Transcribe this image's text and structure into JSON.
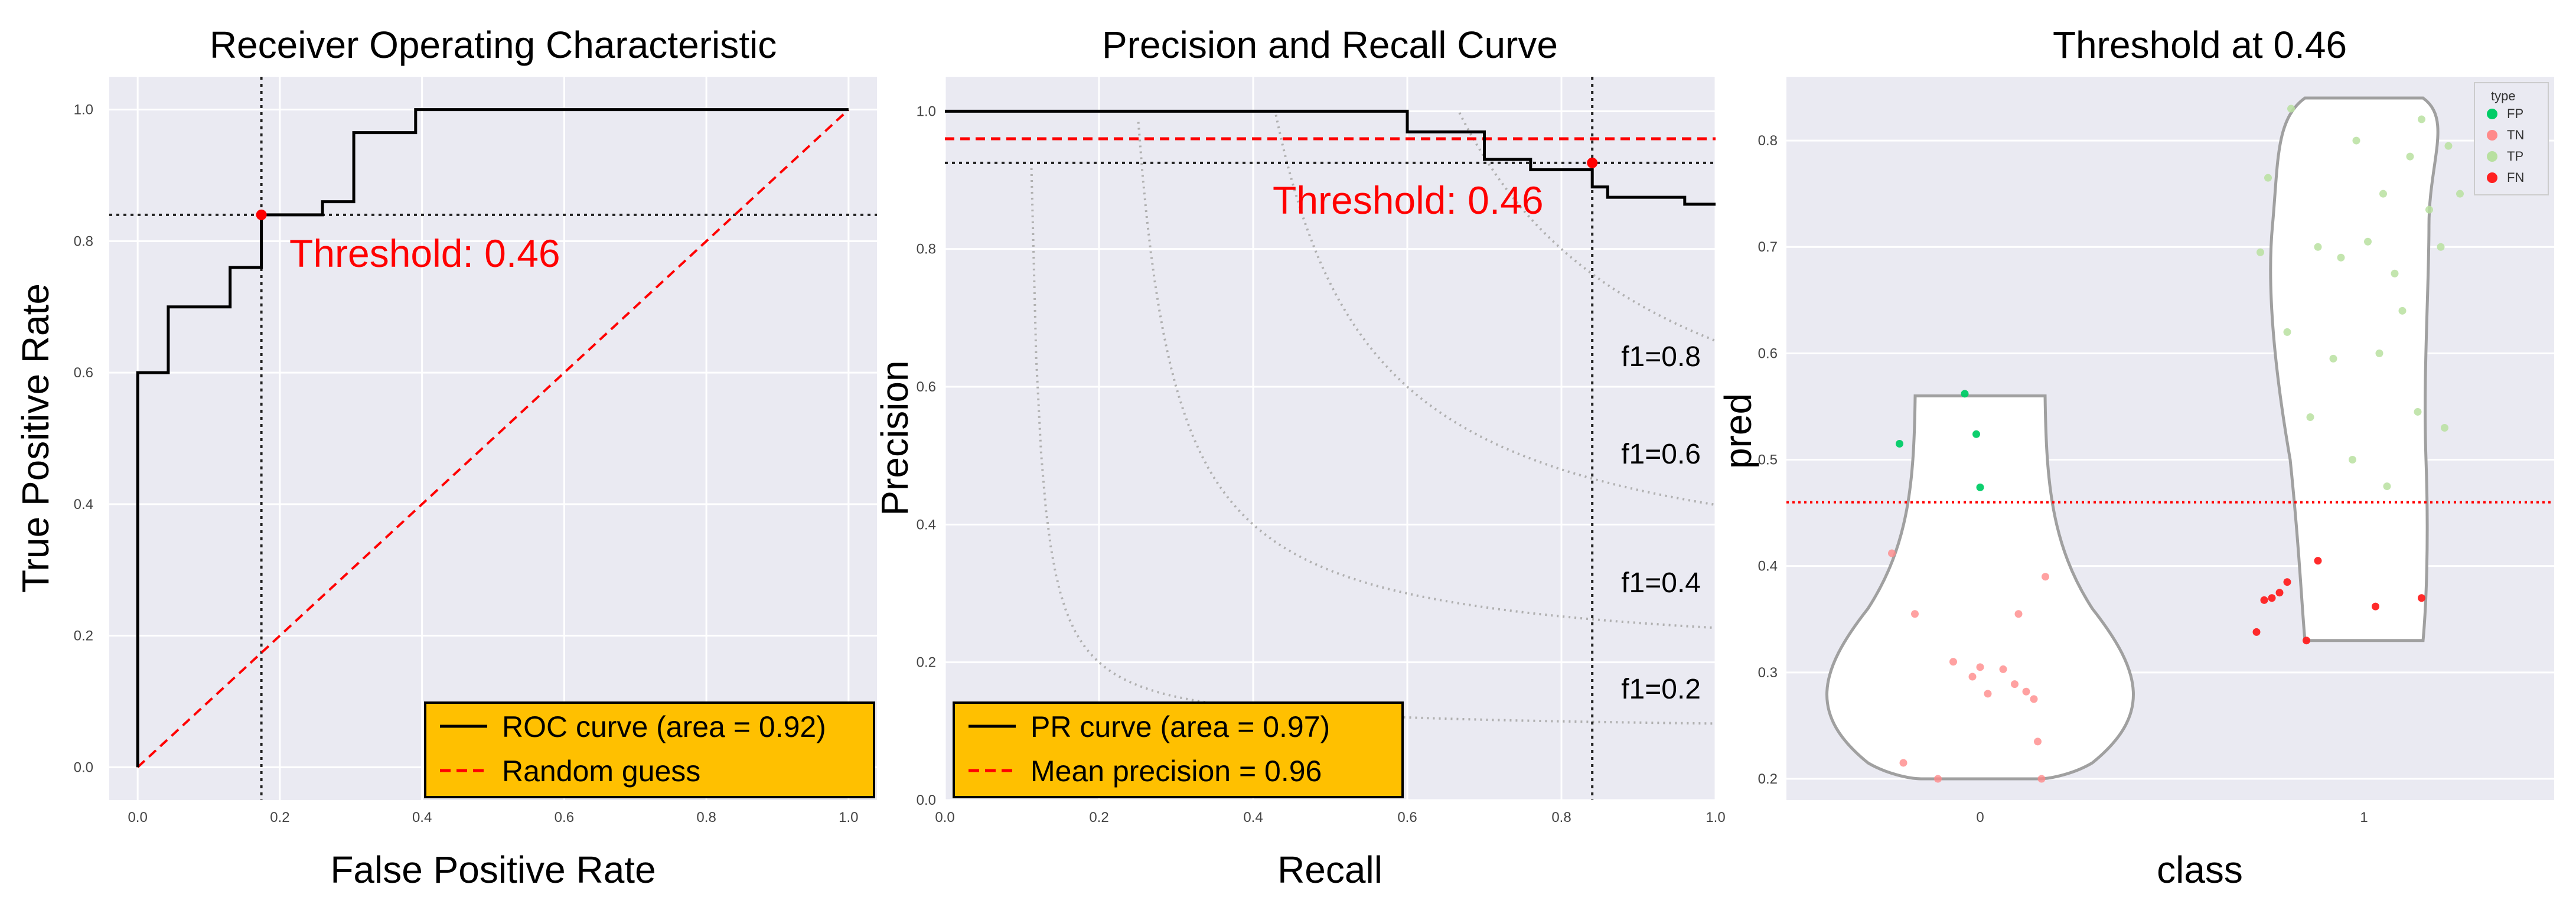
{
  "chart_data": [
    {
      "type": "line",
      "title": "Receiver Operating Characteristic",
      "xlabel": "False Positive Rate",
      "ylabel": "True Positive Rate",
      "xlim": [
        -0.04,
        1.04
      ],
      "ylim": [
        -0.05,
        1.05
      ],
      "xticks": [
        "0.0",
        "0.2",
        "0.4",
        "0.6",
        "0.8",
        "1.0"
      ],
      "yticks": [
        "0.0",
        "0.2",
        "0.4",
        "0.6",
        "0.8",
        "1.0"
      ],
      "grid": true,
      "series": [
        {
          "name": "ROC curve (area = 0.92)",
          "color": "#000000",
          "style": "step",
          "x": [
            0.0,
            0.0,
            0.043,
            0.043,
            0.13,
            0.13,
            0.174,
            0.174,
            0.26,
            0.26,
            0.304,
            0.304,
            0.391,
            0.391,
            1.0
          ],
          "y": [
            0.0,
            0.6,
            0.6,
            0.7,
            0.7,
            0.76,
            0.76,
            0.84,
            0.84,
            0.86,
            0.86,
            0.965,
            0.965,
            1.0,
            1.0
          ]
        },
        {
          "name": "Random guess",
          "color": "#ff0000",
          "style": "dashed",
          "x": [
            0.0,
            1.0
          ],
          "y": [
            0.0,
            1.0
          ]
        }
      ],
      "threshold_point": {
        "x": 0.174,
        "y": 0.84
      },
      "annotation": "Threshold: 0.46",
      "legend_position": "lower-right"
    },
    {
      "type": "line",
      "title": "Precision and Recall Curve",
      "xlabel": "Recall",
      "ylabel": "Precision",
      "xlim": [
        0.0,
        1.0
      ],
      "ylim": [
        0.0,
        1.05
      ],
      "xticks": [
        "0.0",
        "0.2",
        "0.4",
        "0.6",
        "0.8",
        "1.0"
      ],
      "yticks": [
        "0.0",
        "0.2",
        "0.4",
        "0.6",
        "0.8",
        "1.0"
      ],
      "grid": true,
      "series": [
        {
          "name": "PR curve (area = 0.97)",
          "color": "#000000",
          "style": "step",
          "x": [
            0.0,
            0.6,
            0.6,
            0.7,
            0.7,
            0.76,
            0.76,
            0.84,
            0.84,
            0.86,
            0.86,
            0.96,
            0.96,
            1.0
          ],
          "y": [
            1.0,
            1.0,
            0.97,
            0.97,
            0.93,
            0.93,
            0.915,
            0.915,
            0.89,
            0.89,
            0.875,
            0.875,
            0.865,
            0.865
          ]
        },
        {
          "name": "Mean precision = 0.96",
          "color": "#ff0000",
          "style": "dashed",
          "x": [
            0.0,
            1.0
          ],
          "y": [
            0.96,
            0.96
          ]
        }
      ],
      "threshold_point": {
        "x": 0.84,
        "y": 0.925
      },
      "annotation": "Threshold: 0.46",
      "f1_curves": [
        {
          "label": "f1=0.8",
          "f1": 0.8
        },
        {
          "label": "f1=0.6",
          "f1": 0.6
        },
        {
          "label": "f1=0.4",
          "f1": 0.4
        },
        {
          "label": "f1=0.2",
          "f1": 0.2
        }
      ],
      "legend_position": "lower-left"
    },
    {
      "type": "scatter",
      "title": "Threshold at 0.46",
      "xlabel": "class",
      "ylabel": "pred",
      "categories": [
        "0",
        "1"
      ],
      "ylim": [
        0.18,
        0.86
      ],
      "yticks": [
        "0.2",
        "0.3",
        "0.4",
        "0.5",
        "0.6",
        "0.7",
        "0.8"
      ],
      "threshold": 0.46,
      "grid": true,
      "legend_title": "type",
      "legend": [
        {
          "label": "FP",
          "color": "#00cc66"
        },
        {
          "label": "TN",
          "color": "#ff8a8a"
        },
        {
          "label": "TP",
          "color": "#b8e0a0"
        },
        {
          "label": "FN",
          "color": "#ff2020"
        }
      ],
      "violins": [
        {
          "category": "0",
          "ymin": 0.2,
          "ymax": 0.56,
          "bulge_y": 0.29
        },
        {
          "category": "1",
          "ymin": 0.33,
          "ymax": 0.84,
          "bulge_y": 0.72
        }
      ],
      "points": [
        {
          "class": "0",
          "type": "FP",
          "dx": -0.21,
          "y": 0.515
        },
        {
          "class": "0",
          "type": "FP",
          "dx": -0.04,
          "y": 0.562
        },
        {
          "class": "0",
          "type": "FP",
          "dx": -0.01,
          "y": 0.524
        },
        {
          "class": "0",
          "type": "FP",
          "dx": 0.0,
          "y": 0.474
        },
        {
          "class": "0",
          "type": "TN",
          "dx": -0.23,
          "y": 0.412
        },
        {
          "class": "0",
          "type": "TN",
          "dx": 0.17,
          "y": 0.39
        },
        {
          "class": "0",
          "type": "TN",
          "dx": -0.17,
          "y": 0.355
        },
        {
          "class": "0",
          "type": "TN",
          "dx": 0.1,
          "y": 0.355
        },
        {
          "class": "0",
          "type": "TN",
          "dx": -0.07,
          "y": 0.31
        },
        {
          "class": "0",
          "type": "TN",
          "dx": 0.0,
          "y": 0.305
        },
        {
          "class": "0",
          "type": "TN",
          "dx": -0.02,
          "y": 0.296
        },
        {
          "class": "0",
          "type": "TN",
          "dx": 0.06,
          "y": 0.303
        },
        {
          "class": "0",
          "type": "TN",
          "dx": 0.09,
          "y": 0.289
        },
        {
          "class": "0",
          "type": "TN",
          "dx": 0.12,
          "y": 0.282
        },
        {
          "class": "0",
          "type": "TN",
          "dx": 0.14,
          "y": 0.275
        },
        {
          "class": "0",
          "type": "TN",
          "dx": 0.02,
          "y": 0.28
        },
        {
          "class": "0",
          "type": "TN",
          "dx": 0.15,
          "y": 0.235
        },
        {
          "class": "0",
          "type": "TN",
          "dx": -0.2,
          "y": 0.215
        },
        {
          "class": "0",
          "type": "TN",
          "dx": -0.11,
          "y": 0.2
        },
        {
          "class": "0",
          "type": "TN",
          "dx": 0.16,
          "y": 0.2
        },
        {
          "class": "1",
          "type": "TP",
          "dx": -0.25,
          "y": 0.765
        },
        {
          "class": "1",
          "type": "TP",
          "dx": -0.27,
          "y": 0.695
        },
        {
          "class": "1",
          "type": "TP",
          "dx": -0.19,
          "y": 0.83
        },
        {
          "class": "1",
          "type": "TP",
          "dx": -0.02,
          "y": 0.8
        },
        {
          "class": "1",
          "type": "TP",
          "dx": 0.05,
          "y": 0.75
        },
        {
          "class": "1",
          "type": "TP",
          "dx": 0.12,
          "y": 0.785
        },
        {
          "class": "1",
          "type": "TP",
          "dx": 0.17,
          "y": 0.735
        },
        {
          "class": "1",
          "type": "TP",
          "dx": 0.2,
          "y": 0.7
        },
        {
          "class": "1",
          "type": "TP",
          "dx": 0.15,
          "y": 0.82
        },
        {
          "class": "1",
          "type": "TP",
          "dx": 0.22,
          "y": 0.795
        },
        {
          "class": "1",
          "type": "TP",
          "dx": 0.25,
          "y": 0.75
        },
        {
          "class": "1",
          "type": "TP",
          "dx": -0.12,
          "y": 0.7
        },
        {
          "class": "1",
          "type": "TP",
          "dx": -0.06,
          "y": 0.69
        },
        {
          "class": "1",
          "type": "TP",
          "dx": 0.01,
          "y": 0.705
        },
        {
          "class": "1",
          "type": "TP",
          "dx": 0.08,
          "y": 0.675
        },
        {
          "class": "1",
          "type": "TP",
          "dx": 0.1,
          "y": 0.64
        },
        {
          "class": "1",
          "type": "TP",
          "dx": -0.2,
          "y": 0.62
        },
        {
          "class": "1",
          "type": "TP",
          "dx": -0.08,
          "y": 0.595
        },
        {
          "class": "1",
          "type": "TP",
          "dx": 0.04,
          "y": 0.6
        },
        {
          "class": "1",
          "type": "TP",
          "dx": -0.14,
          "y": 0.54
        },
        {
          "class": "1",
          "type": "TP",
          "dx": 0.14,
          "y": 0.545
        },
        {
          "class": "1",
          "type": "TP",
          "dx": 0.21,
          "y": 0.53
        },
        {
          "class": "1",
          "type": "TP",
          "dx": -0.03,
          "y": 0.5
        },
        {
          "class": "1",
          "type": "TP",
          "dx": 0.06,
          "y": 0.475
        },
        {
          "class": "1",
          "type": "FN",
          "dx": -0.12,
          "y": 0.405
        },
        {
          "class": "1",
          "type": "FN",
          "dx": -0.2,
          "y": 0.385
        },
        {
          "class": "1",
          "type": "FN",
          "dx": -0.22,
          "y": 0.375
        },
        {
          "class": "1",
          "type": "FN",
          "dx": -0.24,
          "y": 0.37
        },
        {
          "class": "1",
          "type": "FN",
          "dx": -0.26,
          "y": 0.368
        },
        {
          "class": "1",
          "type": "FN",
          "dx": 0.03,
          "y": 0.362
        },
        {
          "class": "1",
          "type": "FN",
          "dx": 0.15,
          "y": 0.37
        },
        {
          "class": "1",
          "type": "FN",
          "dx": -0.28,
          "y": 0.338
        },
        {
          "class": "1",
          "type": "FN",
          "dx": -0.15,
          "y": 0.33
        }
      ]
    }
  ]
}
